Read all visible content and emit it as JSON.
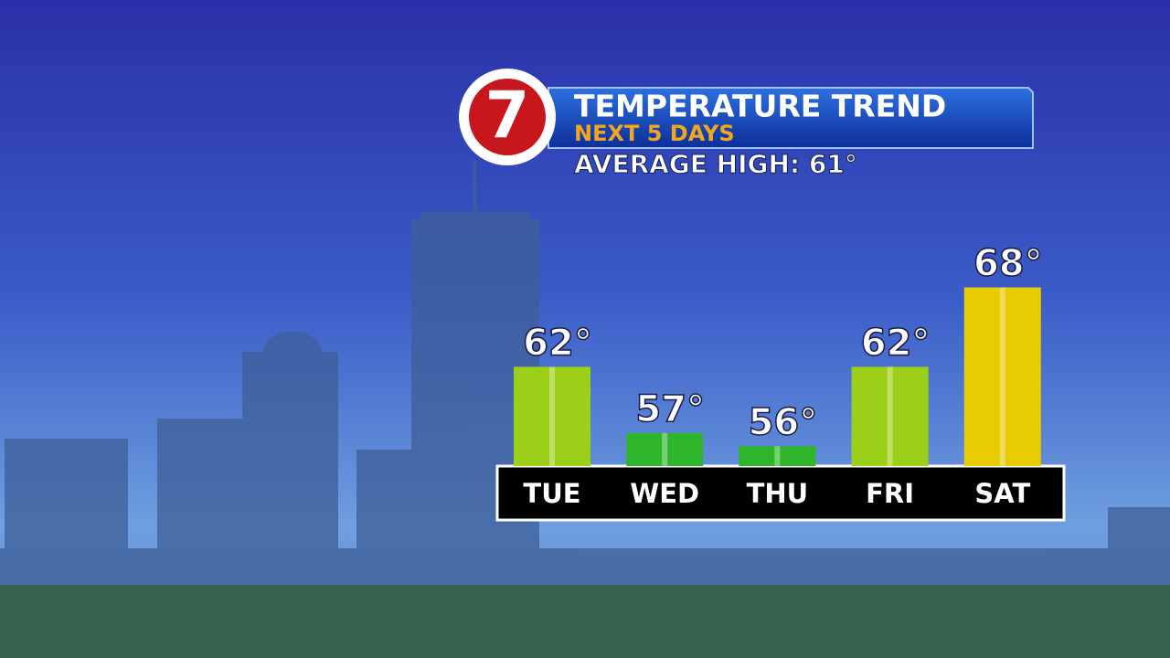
{
  "chart_data": {
    "type": "bar",
    "logo": "7",
    "title": "TEMPERATURE TREND",
    "subtitle": "NEXT 5 DAYS",
    "annotation": "AVERAGE HIGH:  61°",
    "categories": [
      "TUE",
      "WED",
      "THU",
      "FRI",
      "SAT"
    ],
    "values": [
      62,
      57,
      56,
      62,
      68
    ],
    "value_labels": [
      "62°",
      "57°",
      "56°",
      "62°",
      "68°"
    ],
    "colors": [
      "#9ccf18",
      "#2fb52a",
      "#2fb52a",
      "#9ccf18",
      "#e8cb00"
    ],
    "ylim": [
      54.5,
      69
    ]
  }
}
